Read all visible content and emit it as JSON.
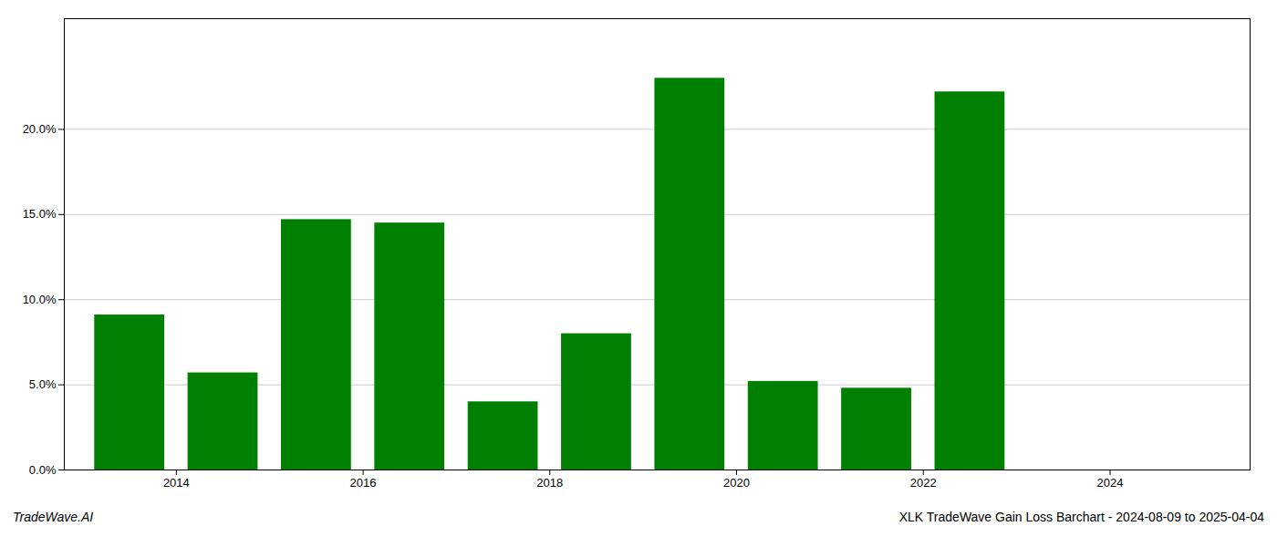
{
  "chart_data": {
    "type": "bar",
    "x": [
      2013,
      2014,
      2015,
      2016,
      2017,
      2018,
      2019,
      2020,
      2021,
      2022,
      2023
    ],
    "values": [
      0.091,
      0.057,
      0.147,
      0.145,
      0.04,
      0.08,
      0.23,
      0.052,
      0.048,
      0.222,
      0.0
    ],
    "color": "#008000",
    "xlim": [
      2012.3,
      2025.0
    ],
    "xticks": [
      {
        "value": 2013.5,
        "label": "2014"
      },
      {
        "value": 2015.5,
        "label": "2016"
      },
      {
        "value": 2017.5,
        "label": "2018"
      },
      {
        "value": 2019.5,
        "label": "2020"
      },
      {
        "value": 2021.5,
        "label": "2022"
      },
      {
        "value": 2023.5,
        "label": "2024"
      }
    ],
    "ylim": [
      0,
      0.265
    ],
    "yticks": [
      {
        "value": 0.0,
        "label": "0.0%"
      },
      {
        "value": 0.05,
        "label": "5.0%"
      },
      {
        "value": 0.1,
        "label": "10.0%"
      },
      {
        "value": 0.15,
        "label": "15.0%"
      },
      {
        "value": 0.2,
        "label": "20.0%"
      }
    ],
    "grid": true,
    "annotations": [
      "TradeWave.AI",
      "XLK TradeWave Gain Loss Barchart - 2024-08-09 to 2025-04-04"
    ]
  }
}
